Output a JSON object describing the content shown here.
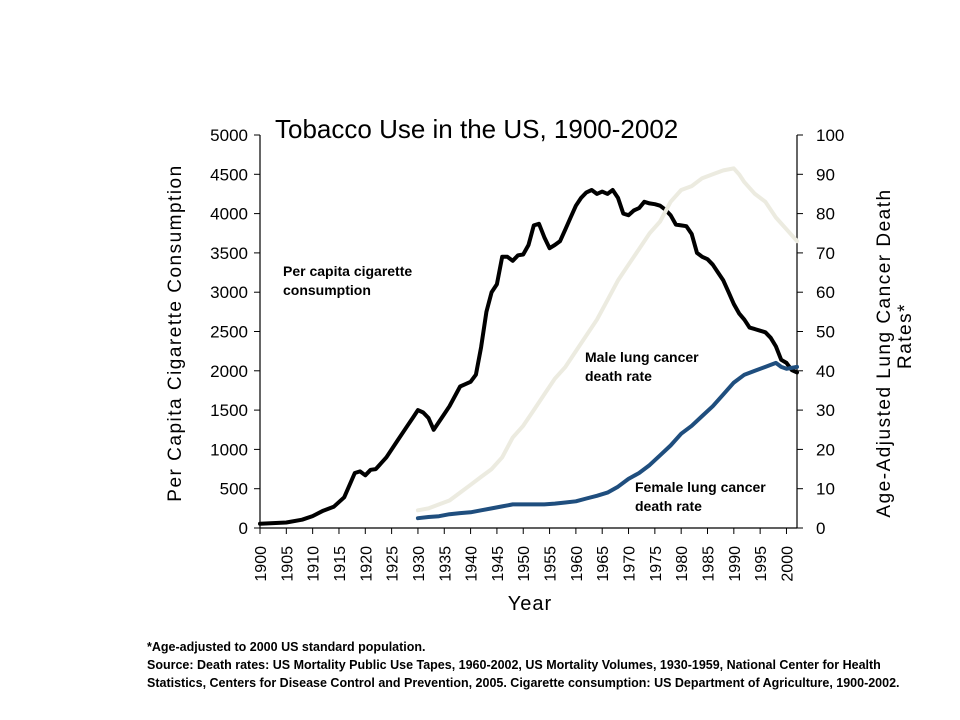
{
  "chart_data": {
    "type": "line",
    "title": "Tobacco Use in the US, 1900-2002",
    "xlabel": "Year",
    "ylabel_left": "Per Capita Cigarette Consumption",
    "ylabel_right": [
      "Age-Adjusted Lung Cancer Death",
      "Rates*"
    ],
    "xlim": [
      1900,
      2002
    ],
    "ylim_left": [
      0,
      5000
    ],
    "ylim_right": [
      0,
      100
    ],
    "grid": false,
    "x_ticks": [
      "1900",
      "1905",
      "1910",
      "1915",
      "1920",
      "1925",
      "1930",
      "1935",
      "1940",
      "1945",
      "1950",
      "1955",
      "1960",
      "1965",
      "1970",
      "1975",
      "1980",
      "1985",
      "1990",
      "1995",
      "2000"
    ],
    "y_ticks_left": [
      "0",
      "500",
      "1000",
      "1500",
      "2000",
      "2500",
      "3000",
      "3500",
      "4000",
      "4500",
      "5000"
    ],
    "y_ticks_right": [
      "0",
      "10",
      "20",
      "30",
      "40",
      "50",
      "60",
      "70",
      "80",
      "90",
      "100"
    ],
    "series": [
      {
        "name": "Per capita cigarette consumption",
        "axis": "left",
        "color": "#000000",
        "label_lines": [
          "Per capita cigarette",
          "consumption"
        ],
        "points": [
          [
            1900,
            54
          ],
          [
            1905,
            70
          ],
          [
            1908,
            105
          ],
          [
            1910,
            151
          ],
          [
            1912,
            220
          ],
          [
            1914,
            270
          ],
          [
            1916,
            390
          ],
          [
            1918,
            700
          ],
          [
            1919,
            720
          ],
          [
            1920,
            670
          ],
          [
            1921,
            740
          ],
          [
            1922,
            750
          ],
          [
            1924,
            900
          ],
          [
            1926,
            1100
          ],
          [
            1928,
            1300
          ],
          [
            1929,
            1400
          ],
          [
            1930,
            1500
          ],
          [
            1931,
            1470
          ],
          [
            1932,
            1400
          ],
          [
            1933,
            1250
          ],
          [
            1935,
            1450
          ],
          [
            1936,
            1550
          ],
          [
            1938,
            1800
          ],
          [
            1939,
            1830
          ],
          [
            1940,
            1860
          ],
          [
            1941,
            1950
          ],
          [
            1942,
            2300
          ],
          [
            1943,
            2750
          ],
          [
            1944,
            3000
          ],
          [
            1945,
            3100
          ],
          [
            1946,
            3450
          ],
          [
            1947,
            3450
          ],
          [
            1948,
            3400
          ],
          [
            1949,
            3470
          ],
          [
            1950,
            3480
          ],
          [
            1951,
            3600
          ],
          [
            1952,
            3850
          ],
          [
            1953,
            3870
          ],
          [
            1954,
            3700
          ],
          [
            1955,
            3560
          ],
          [
            1956,
            3600
          ],
          [
            1957,
            3650
          ],
          [
            1958,
            3800
          ],
          [
            1959,
            3950
          ],
          [
            1960,
            4100
          ],
          [
            1961,
            4200
          ],
          [
            1962,
            4270
          ],
          [
            1963,
            4300
          ],
          [
            1964,
            4250
          ],
          [
            1965,
            4280
          ],
          [
            1966,
            4250
          ],
          [
            1967,
            4300
          ],
          [
            1968,
            4200
          ],
          [
            1969,
            4000
          ],
          [
            1970,
            3980
          ],
          [
            1971,
            4040
          ],
          [
            1972,
            4070
          ],
          [
            1973,
            4150
          ],
          [
            1974,
            4130
          ],
          [
            1975,
            4120
          ],
          [
            1976,
            4100
          ],
          [
            1977,
            4050
          ],
          [
            1978,
            3980
          ],
          [
            1979,
            3860
          ],
          [
            1980,
            3850
          ],
          [
            1981,
            3840
          ],
          [
            1982,
            3740
          ],
          [
            1983,
            3500
          ],
          [
            1984,
            3450
          ],
          [
            1985,
            3420
          ],
          [
            1986,
            3350
          ],
          [
            1987,
            3250
          ],
          [
            1988,
            3150
          ],
          [
            1989,
            3000
          ],
          [
            1990,
            2850
          ],
          [
            1991,
            2730
          ],
          [
            1992,
            2650
          ],
          [
            1993,
            2550
          ],
          [
            1994,
            2530
          ],
          [
            1995,
            2510
          ],
          [
            1996,
            2490
          ],
          [
            1997,
            2420
          ],
          [
            1998,
            2310
          ],
          [
            1999,
            2140
          ],
          [
            2000,
            2100
          ],
          [
            2001,
            2010
          ],
          [
            2002,
            1980
          ]
        ]
      },
      {
        "name": "Male lung cancer death rate",
        "axis": "right",
        "color": "#ecebe0",
        "label_lines": [
          "Male lung cancer",
          "death rate"
        ],
        "points": [
          [
            1930,
            4.5
          ],
          [
            1932,
            5
          ],
          [
            1934,
            6
          ],
          [
            1936,
            7
          ],
          [
            1938,
            9
          ],
          [
            1940,
            11
          ],
          [
            1942,
            13
          ],
          [
            1944,
            15
          ],
          [
            1946,
            18
          ],
          [
            1948,
            23
          ],
          [
            1950,
            26
          ],
          [
            1952,
            30
          ],
          [
            1954,
            34
          ],
          [
            1956,
            38
          ],
          [
            1958,
            41
          ],
          [
            1960,
            45
          ],
          [
            1962,
            49
          ],
          [
            1964,
            53
          ],
          [
            1966,
            58
          ],
          [
            1968,
            63
          ],
          [
            1970,
            67
          ],
          [
            1972,
            71
          ],
          [
            1974,
            75
          ],
          [
            1976,
            78
          ],
          [
            1978,
            83
          ],
          [
            1980,
            86
          ],
          [
            1982,
            87
          ],
          [
            1984,
            89
          ],
          [
            1986,
            90
          ],
          [
            1988,
            91
          ],
          [
            1990,
            91.5
          ],
          [
            1991,
            90
          ],
          [
            1992,
            88
          ],
          [
            1994,
            85
          ],
          [
            1996,
            83
          ],
          [
            1998,
            79
          ],
          [
            2000,
            76
          ],
          [
            2002,
            73
          ]
        ]
      },
      {
        "name": "Female lung cancer death rate",
        "axis": "right",
        "color": "#1f4e7e",
        "label_lines": [
          "Female lung cancer",
          "death rate"
        ],
        "points": [
          [
            1930,
            2.5
          ],
          [
            1932,
            2.8
          ],
          [
            1934,
            3
          ],
          [
            1936,
            3.5
          ],
          [
            1938,
            3.8
          ],
          [
            1940,
            4
          ],
          [
            1942,
            4.5
          ],
          [
            1944,
            5
          ],
          [
            1946,
            5.5
          ],
          [
            1948,
            6
          ],
          [
            1950,
            6
          ],
          [
            1952,
            6
          ],
          [
            1954,
            6
          ],
          [
            1956,
            6.2
          ],
          [
            1958,
            6.5
          ],
          [
            1960,
            6.8
          ],
          [
            1962,
            7.5
          ],
          [
            1964,
            8.2
          ],
          [
            1966,
            9
          ],
          [
            1968,
            10.5
          ],
          [
            1970,
            12.5
          ],
          [
            1972,
            14
          ],
          [
            1974,
            16
          ],
          [
            1976,
            18.5
          ],
          [
            1978,
            21
          ],
          [
            1980,
            24
          ],
          [
            1982,
            26
          ],
          [
            1984,
            28.5
          ],
          [
            1986,
            31
          ],
          [
            1988,
            34
          ],
          [
            1990,
            37
          ],
          [
            1992,
            39
          ],
          [
            1994,
            40
          ],
          [
            1996,
            41
          ],
          [
            1998,
            42
          ],
          [
            1999,
            41
          ],
          [
            2000,
            40.5
          ],
          [
            2002,
            41
          ]
        ]
      }
    ]
  },
  "footnotes": {
    "line1": "*Age-adjusted to 2000 US standard population.",
    "line2": "Source: Death rates: US Mortality Public Use Tapes, 1960-2002, US Mortality Volumes, 1930-1959, National Center for Health Statistics, Centers for Disease Control and Prevention, 2005. Cigarette consumption: US Department of Agriculture, 1900-2002."
  }
}
